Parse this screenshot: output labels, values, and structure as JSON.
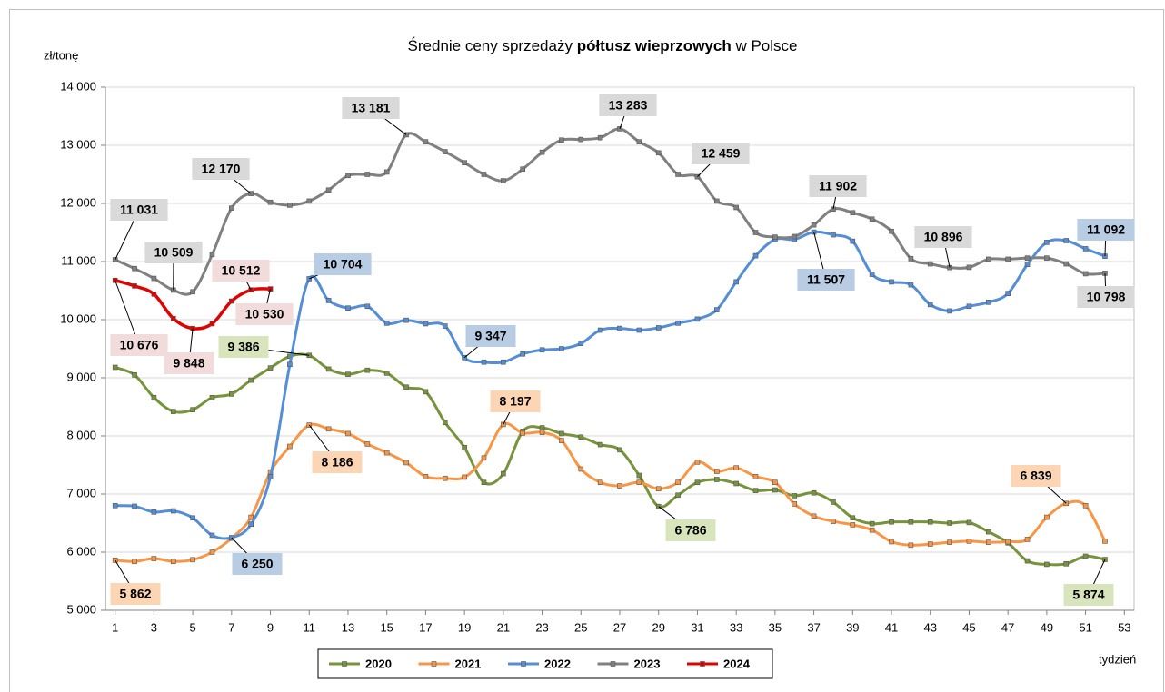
{
  "chart_data": {
    "type": "line",
    "title_parts": [
      "Średnie ceny sprzedaży ",
      "półtusz wieprzowych",
      " w Polsce"
    ],
    "y_label": "zł/tonę",
    "x_label": "tydzień",
    "x": [
      1,
      2,
      3,
      4,
      5,
      6,
      7,
      8,
      9,
      10,
      11,
      12,
      13,
      14,
      15,
      16,
      17,
      18,
      19,
      20,
      21,
      22,
      23,
      24,
      25,
      26,
      27,
      28,
      29,
      30,
      31,
      32,
      33,
      34,
      35,
      36,
      37,
      38,
      39,
      40,
      41,
      42,
      43,
      44,
      45,
      46,
      47,
      48,
      49,
      50,
      51,
      52
    ],
    "xlim": [
      0.5,
      53.5
    ],
    "xticks": [
      1,
      3,
      5,
      7,
      9,
      11,
      13,
      15,
      17,
      19,
      21,
      23,
      25,
      27,
      29,
      31,
      33,
      35,
      37,
      39,
      41,
      43,
      45,
      47,
      49,
      51,
      53
    ],
    "ylim": [
      5000,
      14000
    ],
    "yticks": [
      {
        "value": 5000,
        "label": "5 000"
      },
      {
        "value": 6000,
        "label": "6 000"
      },
      {
        "value": 7000,
        "label": "7 000"
      },
      {
        "value": 8000,
        "label": "8 000"
      },
      {
        "value": 9000,
        "label": "9 000"
      },
      {
        "value": 10000,
        "label": "10 000"
      },
      {
        "value": 11000,
        "label": "11 000"
      },
      {
        "value": 12000,
        "label": "12 000"
      },
      {
        "value": 13000,
        "label": "13 000"
      },
      {
        "value": 14000,
        "label": "14 000"
      }
    ],
    "grid": true,
    "legend": "bottom",
    "series": [
      {
        "name": "2020",
        "color": "#77933c",
        "label_color": "#d8e4bc",
        "values": [
          9180,
          9050,
          8660,
          8420,
          8450,
          8660,
          8720,
          8960,
          9170,
          9370,
          9386,
          9150,
          9060,
          9130,
          9080,
          8840,
          8760,
          8230,
          7800,
          7200,
          7350,
          8080,
          8140,
          8040,
          7980,
          7850,
          7760,
          7320,
          6786,
          6980,
          7200,
          7250,
          7180,
          7060,
          7070,
          6970,
          7020,
          6860,
          6590,
          6490,
          6520,
          6520,
          6520,
          6500,
          6510,
          6350,
          6160,
          5850,
          5790,
          5800,
          5930,
          5874
        ]
      },
      {
        "name": "2021",
        "color": "#f79646",
        "label_color": "#fcd5b4",
        "values": [
          5862,
          5840,
          5890,
          5840,
          5870,
          6000,
          6240,
          6600,
          7380,
          7820,
          8186,
          8120,
          8040,
          7860,
          7710,
          7540,
          7300,
          7270,
          7290,
          7620,
          8197,
          8050,
          8060,
          7920,
          7430,
          7200,
          7140,
          7200,
          7090,
          7200,
          7550,
          7390,
          7450,
          7300,
          7200,
          6830,
          6620,
          6530,
          6470,
          6380,
          6180,
          6120,
          6140,
          6170,
          6190,
          6170,
          6180,
          6220,
          6600,
          6839,
          6800,
          6190
        ]
      },
      {
        "name": "2022",
        "color": "#558ed5",
        "label_color": "#b8cce4",
        "values": [
          6800,
          6790,
          6690,
          6710,
          6590,
          6290,
          6250,
          6480,
          7300,
          9230,
          10704,
          10330,
          10200,
          10230,
          9940,
          9990,
          9930,
          9890,
          9347,
          9270,
          9270,
          9410,
          9480,
          9500,
          9590,
          9820,
          9850,
          9820,
          9860,
          9940,
          10010,
          10170,
          10650,
          11100,
          11380,
          11380,
          11507,
          11460,
          11350,
          10780,
          10650,
          10600,
          10260,
          10150,
          10230,
          10300,
          10450,
          10950,
          11330,
          11360,
          11220,
          11092
        ]
      },
      {
        "name": "2023",
        "color": "#808080",
        "label_color": "#d9d9d9",
        "values": [
          11031,
          10880,
          10710,
          10509,
          10480,
          11120,
          11920,
          12170,
          12020,
          11970,
          12040,
          12230,
          12480,
          12500,
          12540,
          13181,
          13060,
          12890,
          12700,
          12500,
          12390,
          12590,
          12880,
          13090,
          13100,
          13130,
          13283,
          13060,
          12870,
          12500,
          12459,
          12040,
          11930,
          11500,
          11420,
          11430,
          11630,
          11902,
          11840,
          11730,
          11520,
          11050,
          10960,
          10896,
          10900,
          11040,
          11040,
          11060,
          11060,
          10960,
          10790,
          10798
        ]
      },
      {
        "name": "2024",
        "color": "#e00000",
        "label_color": "#f2dcdb",
        "values": [
          10676,
          10580,
          10440,
          10020,
          9848,
          9930,
          10320,
          10512,
          10530,
          null,
          null,
          null,
          null,
          null,
          null,
          null,
          null,
          null,
          null,
          null,
          null,
          null,
          null,
          null,
          null,
          null,
          null,
          null,
          null,
          null,
          null,
          null,
          null,
          null,
          null,
          null,
          null,
          null,
          null,
          null,
          null,
          null,
          null,
          null,
          null,
          null,
          null,
          null,
          null,
          null,
          null,
          null
        ]
      }
    ],
    "annotations": [
      {
        "series": 3,
        "x": 1,
        "value": 11031,
        "label": "11 031"
      },
      {
        "series": 3,
        "x": 8,
        "value": 12170,
        "label": "12 170"
      },
      {
        "series": 3,
        "x": 4,
        "value": 10509,
        "label": "10 509"
      },
      {
        "series": 3,
        "x": 16,
        "value": 13181,
        "label": "13 181"
      },
      {
        "series": 3,
        "x": 27,
        "value": 13283,
        "label": "13 283"
      },
      {
        "series": 3,
        "x": 31,
        "value": 12459,
        "label": "12 459"
      },
      {
        "series": 3,
        "x": 38,
        "value": 11902,
        "label": "11 902"
      },
      {
        "series": 3,
        "x": 44,
        "value": 10896,
        "label": "10 896"
      },
      {
        "series": 3,
        "x": 52,
        "value": 10798,
        "label": "10 798"
      },
      {
        "series": 4,
        "x": 8,
        "value": 10512,
        "label": "10 512"
      },
      {
        "series": 4,
        "x": 9,
        "value": 10530,
        "label": "10 530"
      },
      {
        "series": 4,
        "x": 1,
        "value": 10676,
        "label": "10 676"
      },
      {
        "series": 4,
        "x": 5,
        "value": 9848,
        "label": "9 848"
      },
      {
        "series": 2,
        "x": 11,
        "value": 10704,
        "label": "10 704"
      },
      {
        "series": 2,
        "x": 19,
        "value": 9347,
        "label": "9 347"
      },
      {
        "series": 2,
        "x": 37,
        "value": 11507,
        "label": "11 507"
      },
      {
        "series": 2,
        "x": 52,
        "value": 11092,
        "label": "11 092"
      },
      {
        "series": 2,
        "x": 7,
        "value": 6250,
        "label": "6 250"
      },
      {
        "series": 0,
        "x": 11,
        "value": 9386,
        "label": "9 386"
      },
      {
        "series": 0,
        "x": 29,
        "value": 6786,
        "label": "6 786"
      },
      {
        "series": 0,
        "x": 52,
        "value": 5874,
        "label": "5 874"
      },
      {
        "series": 1,
        "x": 21,
        "value": 8197,
        "label": "8 197"
      },
      {
        "series": 1,
        "x": 11,
        "value": 8186,
        "label": "8 186"
      },
      {
        "series": 1,
        "x": 50,
        "value": 6839,
        "label": "6 839"
      },
      {
        "series": 1,
        "x": 1,
        "value": 5862,
        "label": "5 862"
      }
    ]
  }
}
